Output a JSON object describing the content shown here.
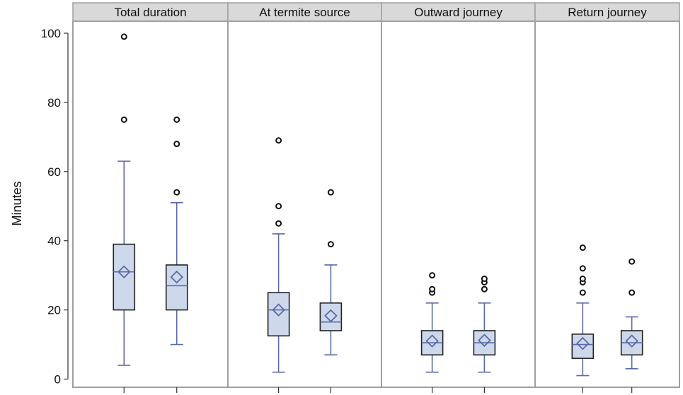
{
  "chart_data": {
    "type": "box",
    "ylabel": "Minutes",
    "ylim": [
      0,
      100
    ],
    "yticks": [
      0,
      20,
      40,
      60,
      80,
      100
    ],
    "grid": false,
    "box_fill": "#cdd8ea",
    "whisker_color": "#5a6aa8",
    "panels": [
      {
        "title": "Total duration",
        "boxes": [
          {
            "min": 4,
            "q1": 20,
            "median": 31,
            "q3": 39,
            "max": 63,
            "mean": 31,
            "outliers": [
              75,
              99
            ]
          },
          {
            "min": 10,
            "q1": 20,
            "median": 27,
            "q3": 33,
            "max": 51,
            "mean": 29.5,
            "outliers": [
              54,
              68,
              75
            ]
          }
        ]
      },
      {
        "title": "At termite source",
        "boxes": [
          {
            "min": 2,
            "q1": 12.5,
            "median": 20,
            "q3": 25,
            "max": 42,
            "mean": 20,
            "outliers": [
              45,
              50,
              69
            ]
          },
          {
            "min": 7,
            "q1": 14,
            "median": 16.5,
            "q3": 22,
            "max": 33,
            "mean": 18.3,
            "outliers": [
              39,
              54
            ]
          }
        ]
      },
      {
        "title": "Outward journey",
        "boxes": [
          {
            "min": 2,
            "q1": 7,
            "median": 10.5,
            "q3": 14,
            "max": 22,
            "mean": 11,
            "outliers": [
              25,
              26,
              30
            ]
          },
          {
            "min": 2,
            "q1": 7,
            "median": 10.5,
            "q3": 14,
            "max": 22,
            "mean": 11.2,
            "outliers": [
              26,
              28,
              29
            ]
          }
        ]
      },
      {
        "title": "Return journey",
        "boxes": [
          {
            "min": 1,
            "q1": 6,
            "median": 10,
            "q3": 13,
            "max": 22,
            "mean": 10.3,
            "outliers": [
              25,
              28,
              29,
              32,
              38
            ]
          },
          {
            "min": 3,
            "q1": 7,
            "median": 10.5,
            "q3": 14,
            "max": 18,
            "mean": 11,
            "outliers": [
              25,
              34
            ]
          }
        ]
      }
    ]
  }
}
